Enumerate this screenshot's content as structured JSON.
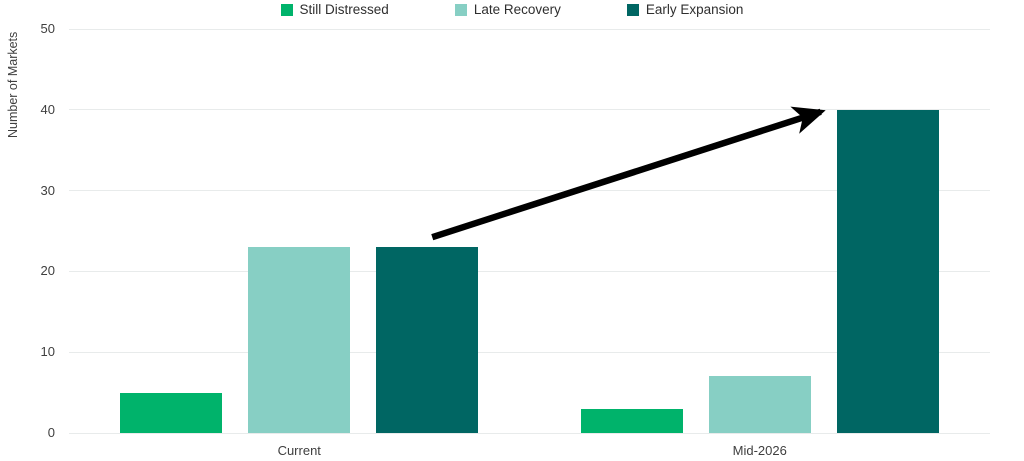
{
  "chart_data": {
    "type": "bar",
    "title": "",
    "categories": [
      "Current",
      "Mid-2026"
    ],
    "series": [
      {
        "name": "Still Distressed",
        "color": "#00b36b",
        "values": [
          5,
          3
        ]
      },
      {
        "name": "Late Recovery",
        "color": "#87cfc4",
        "values": [
          23,
          7
        ]
      },
      {
        "name": "Early Expansion",
        "color": "#006663",
        "values": [
          23,
          40
        ]
      }
    ],
    "xlabel": "",
    "ylabel": "Number of Markets",
    "ylim": [
      0,
      50
    ],
    "yticks": [
      0,
      10,
      20,
      30,
      40,
      50
    ],
    "grid": true,
    "legend_position": "top",
    "annotations": [
      {
        "type": "arrow",
        "from": "Current / Early Expansion bar top",
        "to": "Mid-2026 / Early Expansion bar top",
        "color": "#000000"
      }
    ]
  }
}
